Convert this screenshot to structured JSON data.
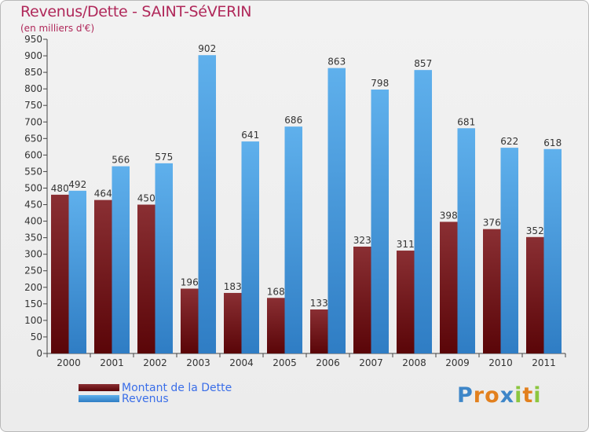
{
  "header": {
    "title": "Revenus/Dette - SAINT-SéVERIN",
    "subtitle": "(en milliers d'€)"
  },
  "legend": [
    {
      "label": "Montant de la Dette",
      "color": "#6b1013"
    },
    {
      "label": "Revenus",
      "color": "#4a9fe2"
    }
  ],
  "logo": {
    "text": "Proxiti",
    "letters": [
      "P",
      "r",
      "o",
      "x",
      "i",
      "t",
      "i"
    ]
  },
  "chart_data": {
    "type": "bar",
    "title": "Revenus/Dette - SAINT-SéVERIN",
    "subtitle": "(en milliers d'€)",
    "xlabel": "",
    "ylabel": "",
    "ylim": [
      0,
      950
    ],
    "ytick_step": 50,
    "grid": false,
    "legend_position": "bottom-left",
    "categories": [
      "2000",
      "2001",
      "2002",
      "2003",
      "2004",
      "2005",
      "2006",
      "2007",
      "2008",
      "2009",
      "2010",
      "2011"
    ],
    "series": [
      {
        "name": "Montant de la Dette",
        "color": "#6b1013",
        "values": [
          480,
          464,
          450,
          196,
          183,
          168,
          133,
          323,
          311,
          398,
          376,
          352
        ]
      },
      {
        "name": "Revenus",
        "color": "#4a9fe2",
        "values": [
          492,
          566,
          575,
          902,
          641,
          686,
          863,
          798,
          857,
          681,
          622,
          618
        ]
      }
    ]
  }
}
